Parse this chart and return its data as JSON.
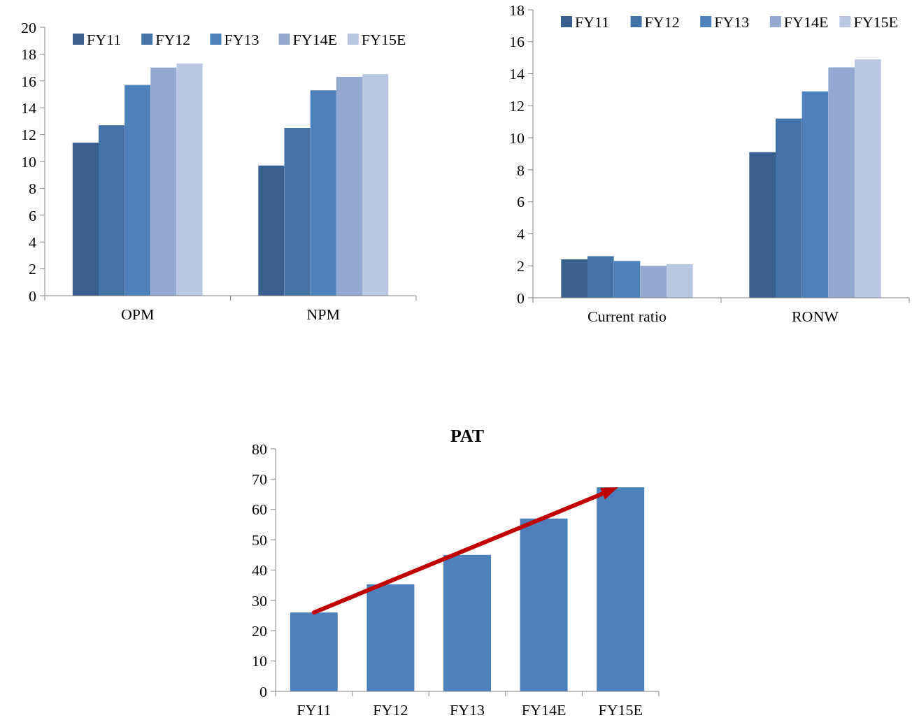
{
  "chart_data": [
    {
      "type": "bar",
      "categories": [
        "OPM",
        "NPM"
      ],
      "series": [
        {
          "name": "FY11",
          "color": "#3a5f8e",
          "values": [
            11.4,
            9.7
          ]
        },
        {
          "name": "FY12",
          "color": "#4471a6",
          "values": [
            12.7,
            12.5
          ]
        },
        {
          "name": "FY13",
          "color": "#4e80bc",
          "values": [
            15.7,
            15.3
          ]
        },
        {
          "name": "FY14E",
          "color": "#95a9d0",
          "values": [
            17.0,
            16.3
          ]
        },
        {
          "name": "FY15E",
          "color": "#bac7e0",
          "values": [
            17.3,
            16.5
          ]
        }
      ],
      "ylim": [
        0,
        20
      ],
      "yticks": [
        0,
        2,
        4,
        6,
        8,
        10,
        12,
        14,
        16,
        18,
        20
      ],
      "legend": "top",
      "grid": false
    },
    {
      "type": "bar",
      "categories": [
        "Current ratio",
        "RONW"
      ],
      "series": [
        {
          "name": "FY11",
          "color": "#3a5f8e",
          "values": [
            2.4,
            9.1
          ]
        },
        {
          "name": "FY12",
          "color": "#4471a6",
          "values": [
            2.6,
            11.2
          ]
        },
        {
          "name": "FY13",
          "color": "#4e80bc",
          "values": [
            2.3,
            12.9
          ]
        },
        {
          "name": "FY14E",
          "color": "#95a9d0",
          "values": [
            2.0,
            14.4
          ]
        },
        {
          "name": "FY15E",
          "color": "#bac7e0",
          "values": [
            2.1,
            14.9
          ]
        }
      ],
      "ylim": [
        0,
        18
      ],
      "yticks": [
        0,
        2,
        4,
        6,
        8,
        10,
        12,
        14,
        16,
        18
      ],
      "legend": "top",
      "grid": false
    },
    {
      "type": "bar",
      "title": "PAT",
      "categories": [
        "FY11",
        "FY12",
        "FY13",
        "FY14E",
        "FY15E"
      ],
      "series": [
        {
          "color": "#4e80bc",
          "values": [
            26,
            35.3,
            45,
            57,
            67.3
          ]
        }
      ],
      "ylim": [
        0,
        80
      ],
      "yticks": [
        0,
        10,
        20,
        30,
        40,
        50,
        60,
        70,
        80
      ],
      "legend": false,
      "grid": false
    }
  ]
}
